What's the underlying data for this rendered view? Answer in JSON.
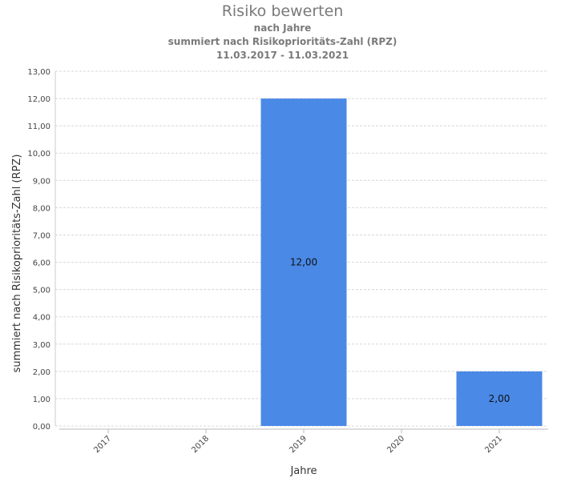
{
  "chart_data": {
    "type": "bar",
    "title": "Risiko bewerten",
    "subtitles": [
      "nach Jahre",
      "summiert nach Risikoprioritäts-Zahl (RPZ)",
      "11.03.2017 - 11.03.2021"
    ],
    "xlabel": "Jahre",
    "ylabel": "summiert nach Risikoprioritäts-Zahl (RPZ)",
    "categories": [
      "2017",
      "2018",
      "2019",
      "2020",
      "2021"
    ],
    "values": [
      0,
      0,
      12,
      0,
      2
    ],
    "value_labels": [
      "",
      "",
      "12,00",
      "",
      "2,00"
    ],
    "ylim": [
      0,
      13
    ],
    "yticks": [
      "0,00",
      "1,00",
      "2,00",
      "3,00",
      "4,00",
      "5,00",
      "6,00",
      "7,00",
      "8,00",
      "9,00",
      "10,00",
      "11,00",
      "12,00",
      "13,00"
    ],
    "grid": true,
    "bar_color": "#4a89e6"
  }
}
